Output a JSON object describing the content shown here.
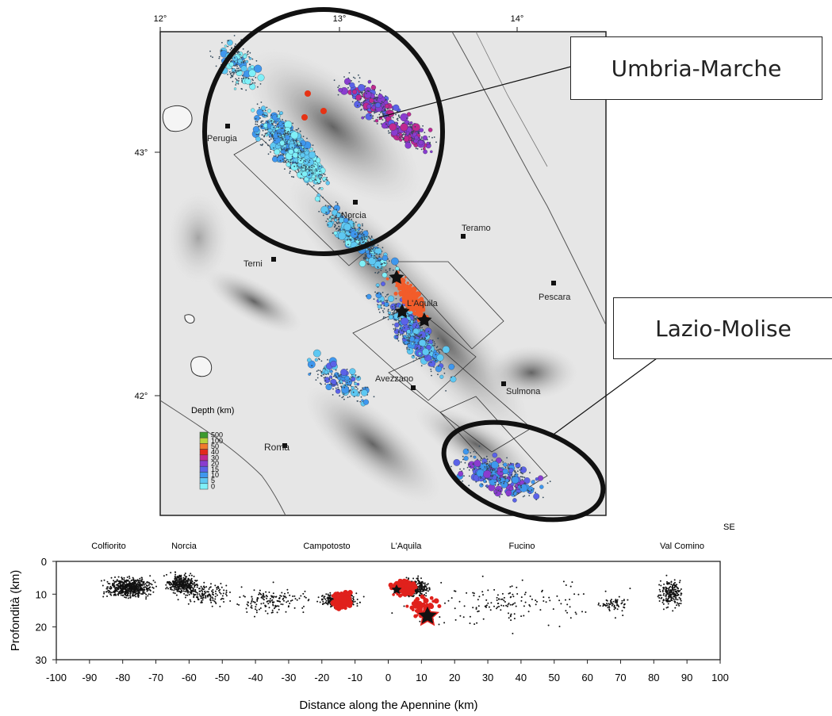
{
  "map": {
    "lon_ticks": [
      "12°",
      "13°",
      "14°"
    ],
    "lat_ticks": [
      "43°",
      "42°"
    ],
    "cities": [
      "Perugia",
      "Norcia",
      "Teramo",
      "Terni",
      "L'Aquila",
      "Pescara",
      "Avezzano",
      "Sulmona",
      "Roma"
    ],
    "legend": {
      "title": "Depth (km)",
      "levels": [
        "500",
        "100",
        "50",
        "40",
        "30",
        "20",
        "15",
        "10",
        "5",
        "0"
      ],
      "colors": [
        "#3c9a2e",
        "#b8d23a",
        "#f07a2c",
        "#e32a1c",
        "#c02890",
        "#8a3ccf",
        "#5b62e8",
        "#3f97ee",
        "#5ec8f2",
        "#7ff0f8"
      ]
    },
    "callouts": {
      "umbria": "Umbria-Marche",
      "lazio": "Lazio-Molise"
    }
  },
  "section": {
    "direction_label": "SE",
    "places": [
      "Colfiorito",
      "Norcia",
      "Campotosto",
      "L'Aquila",
      "Fucino",
      "Val Comino"
    ],
    "y_label": "Profondità (km)",
    "x_label": "Distance along the Apennine (km)",
    "y_ticks": [
      "0",
      "10",
      "20",
      "30"
    ],
    "x_ticks": [
      "-100",
      "-90",
      "-80",
      "-70",
      "-60",
      "-50",
      "-40",
      "-30",
      "-20",
      "-10",
      "0",
      "10",
      "20",
      "30",
      "40",
      "50",
      "60",
      "70",
      "80",
      "90",
      "100"
    ],
    "x_range": [
      -100,
      100
    ],
    "y_range": [
      0,
      30
    ],
    "event_color": "#111111",
    "highlight_color": "#e0211c"
  }
}
